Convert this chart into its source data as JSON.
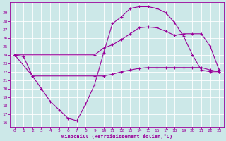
{
  "xlabel": "Windchill (Refroidissement éolien,°C)",
  "bg_color": "#cce8e8",
  "line_color": "#990099",
  "grid_color": "#ffffff",
  "xlim": [
    -0.5,
    23.5
  ],
  "ylim": [
    15.5,
    30.2
  ],
  "xticks": [
    0,
    1,
    2,
    3,
    4,
    5,
    6,
    7,
    8,
    9,
    10,
    11,
    12,
    13,
    14,
    15,
    16,
    17,
    18,
    19,
    20,
    21,
    22,
    23
  ],
  "yticks": [
    16,
    17,
    18,
    19,
    20,
    21,
    22,
    23,
    24,
    25,
    26,
    27,
    28,
    29
  ],
  "line1_x": [
    0,
    1,
    2,
    3,
    4,
    5,
    6,
    7,
    8,
    9,
    10,
    11,
    12,
    13,
    14,
    15,
    16,
    17,
    18,
    19,
    20,
    21,
    22,
    23
  ],
  "line1_y": [
    24.0,
    23.8,
    21.5,
    20.0,
    18.5,
    17.5,
    16.5,
    16.2,
    18.2,
    20.5,
    24.2,
    27.7,
    28.5,
    29.5,
    29.7,
    29.7,
    29.5,
    29.0,
    27.8,
    26.2,
    24.0,
    22.2,
    22.0,
    22.0
  ],
  "line2_x": [
    0,
    9,
    10,
    11,
    12,
    13,
    14,
    15,
    16,
    17,
    18,
    19,
    20,
    21,
    22,
    23
  ],
  "line2_y": [
    24.0,
    24.0,
    24.8,
    25.2,
    25.8,
    26.5,
    27.2,
    27.3,
    27.2,
    26.8,
    26.3,
    26.5,
    26.5,
    26.5,
    25.0,
    22.2
  ],
  "line3_x": [
    0,
    2,
    9,
    10,
    11,
    12,
    13,
    14,
    15,
    16,
    17,
    18,
    19,
    20,
    21,
    22,
    23
  ],
  "line3_y": [
    24.0,
    21.5,
    21.5,
    21.5,
    21.7,
    22.0,
    22.2,
    22.4,
    22.5,
    22.5,
    22.5,
    22.5,
    22.5,
    22.5,
    22.5,
    22.2,
    22.0
  ]
}
